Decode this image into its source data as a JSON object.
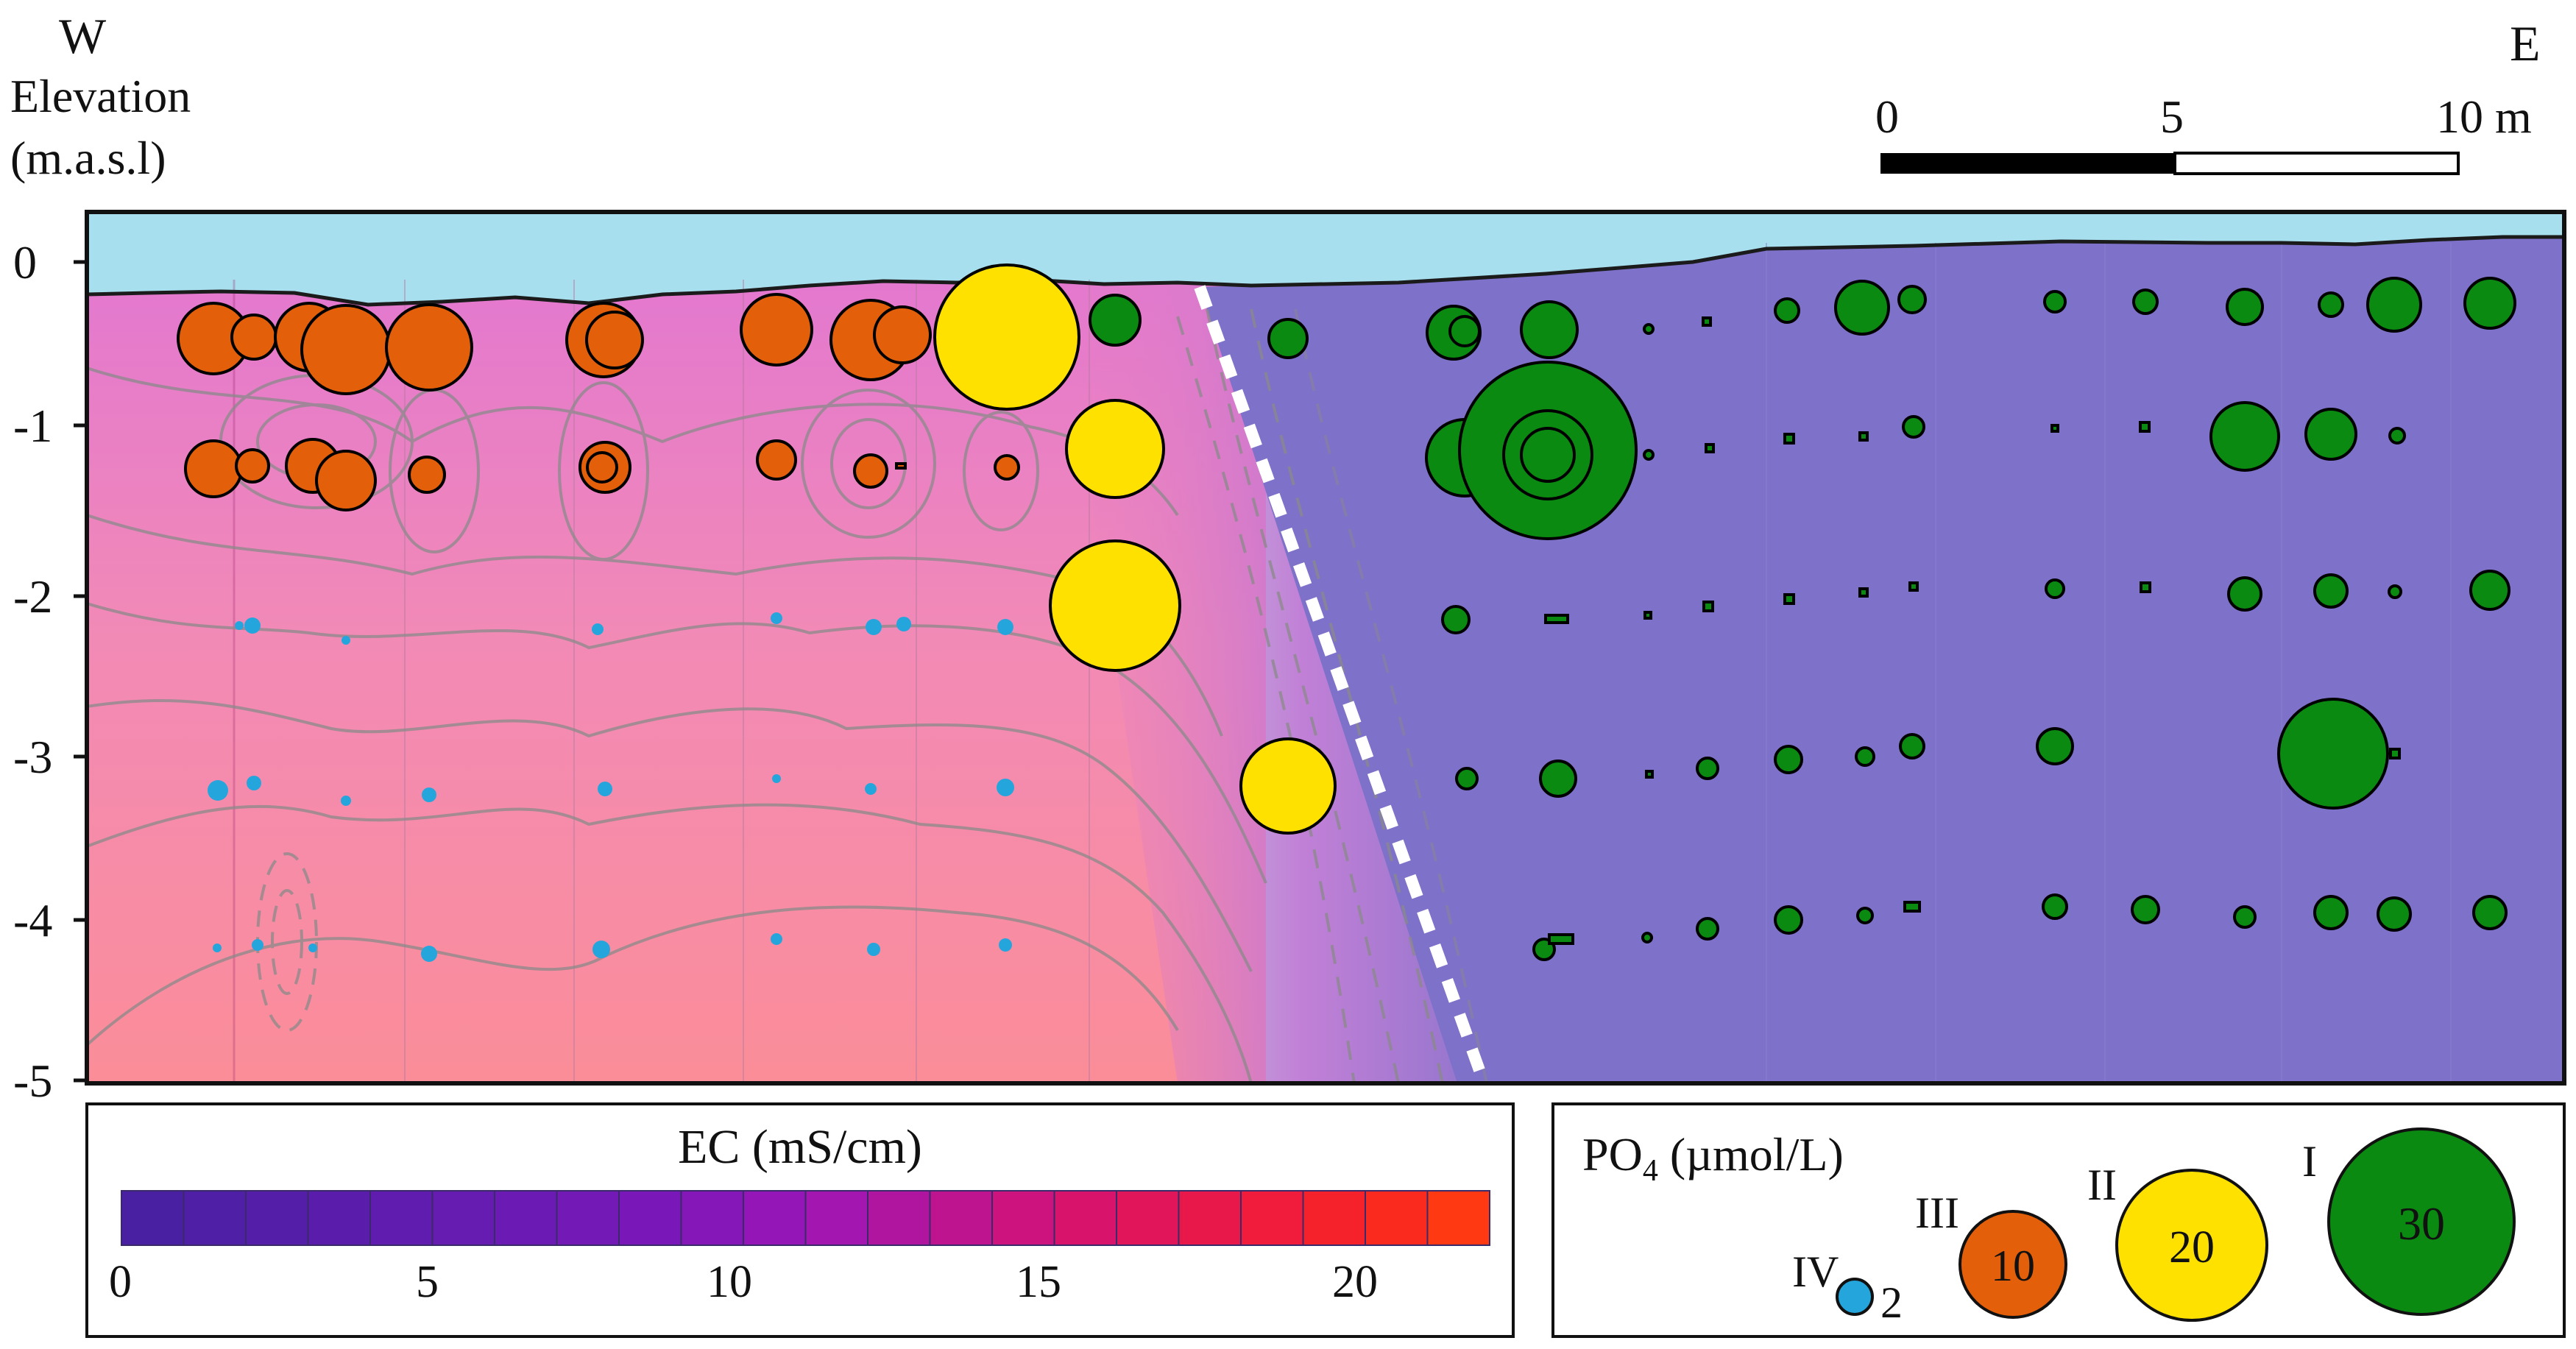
{
  "orientation": {
    "west": "W",
    "east": "E"
  },
  "y_axis": {
    "label_line1": "Elevation",
    "label_line2": "(m.a.s.l)",
    "ticks": [
      "0",
      "-1",
      "-2",
      "-3",
      "-4",
      "-5"
    ]
  },
  "scale_bar": {
    "labels": [
      "0",
      "5",
      "10 m"
    ]
  },
  "ec_legend": {
    "title": "EC (mS/cm)",
    "ticks": [
      "0",
      "5",
      "10",
      "15",
      "20"
    ],
    "colors": [
      "#4a20a2",
      "#4f1fa5",
      "#541ea8",
      "#5a1dab",
      "#601cae",
      "#661bb1",
      "#6c1ab4",
      "#7319b6",
      "#7a17b8",
      "#8516b8",
      "#9516b7",
      "#a316b0",
      "#b015a0",
      "#bf1490",
      "#cc137e",
      "#d8136b",
      "#e1155a",
      "#e9184a",
      "#f11c3b",
      "#f5222c",
      "#fa2b1e",
      "#ff3a12"
    ]
  },
  "po4_legend": {
    "title_prefix": "PO",
    "title_subscript": "4",
    "title_suffix": " (µmol/L)",
    "classes": [
      {
        "roman": "IV",
        "value": "2",
        "color": "#24a6dd"
      },
      {
        "roman": "III",
        "value": "10",
        "color": "#e35f0a"
      },
      {
        "roman": "II",
        "value": "20",
        "color": "#ffe100"
      },
      {
        "roman": "I",
        "value": "30",
        "color": "#0a8a10"
      }
    ]
  },
  "colors": {
    "water": "#a7dfee",
    "west_zone": "#f07ab0",
    "east_zone": "#7e71c9",
    "contour": "#8a8a8a",
    "boundary": "#ffffff"
  }
}
